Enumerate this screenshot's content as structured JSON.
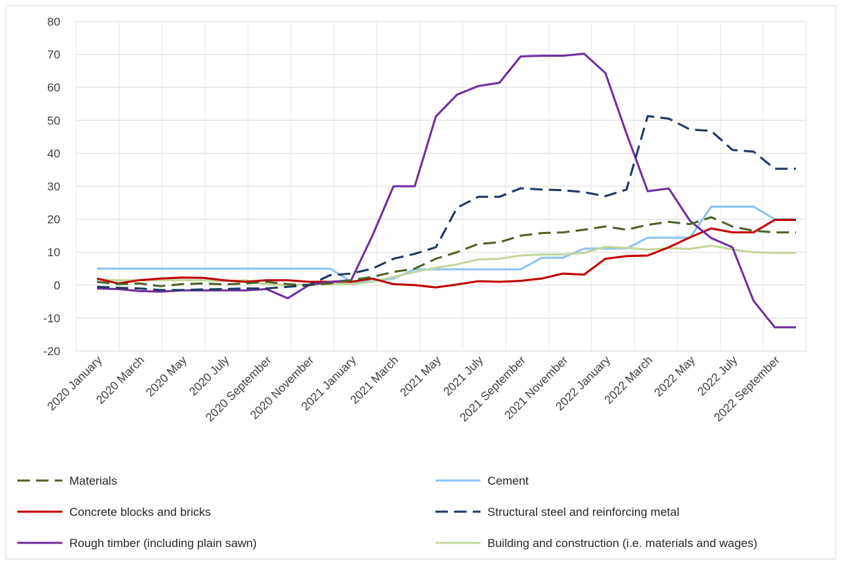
{
  "chart_data": {
    "type": "line",
    "title": "",
    "xlabel": "",
    "ylabel": "",
    "ylim": [
      -20,
      80
    ],
    "yticks": [
      -20,
      -10,
      0,
      10,
      20,
      30,
      40,
      50,
      60,
      70,
      80
    ],
    "grid": true,
    "legend_position": "bottom",
    "x": [
      "2020 January",
      "2020 February",
      "2020 March",
      "2020 April",
      "2020 May",
      "2020 June",
      "2020 July",
      "2020 August",
      "2020 September",
      "2020 October",
      "2020 November",
      "2020 December",
      "2021 January",
      "2021 February",
      "2021 March",
      "2021 April",
      "2021 May",
      "2021 June",
      "2021 July",
      "2021 August",
      "2021 September",
      "2021 October",
      "2021 November",
      "2021 December",
      "2022 January",
      "2022 February",
      "2022 March",
      "2022 April",
      "2022 May",
      "2022 June",
      "2022 July",
      "2022 August",
      "2022 September",
      "2022 October"
    ],
    "x_tick_labels": [
      "2020 January",
      "2020 March",
      "2020 May",
      "2020 July",
      "2020 September",
      "2020 November",
      "2021 January",
      "2021 March",
      "2021 May",
      "2021 July",
      "2021 September",
      "2021 November",
      "2022 January",
      "2022 March",
      "2022 May",
      "2022 July",
      "2022 September"
    ],
    "series": [
      {
        "name": "Materials",
        "color": "#4f6228",
        "dash": true,
        "values": [
          1.0,
          0.3,
          0.5,
          -0.3,
          0.3,
          0.5,
          0.2,
          0.5,
          1.0,
          0.3,
          0.0,
          0.5,
          1.5,
          2.5,
          4.0,
          5.0,
          8.0,
          10.0,
          12.5,
          13.0,
          15.0,
          15.8,
          16.0,
          16.8,
          17.8,
          16.8,
          18.3,
          19.2,
          18.5,
          20.6,
          17.8,
          16.5,
          16.0,
          16.0
        ]
      },
      {
        "name": "Cement",
        "color": "#8ec3ef",
        "dash": false,
        "values": [
          5.0,
          5.0,
          5.0,
          5.0,
          5.0,
          5.0,
          5.0,
          5.0,
          5.0,
          5.0,
          5.0,
          5.0,
          1.0,
          1.2,
          2.0,
          4.8,
          4.8,
          4.8,
          4.8,
          4.8,
          4.8,
          8.3,
          8.3,
          11.1,
          11.1,
          11.1,
          14.4,
          14.4,
          14.4,
          23.8,
          23.8,
          23.8,
          20.0,
          20.0
        ]
      },
      {
        "name": "Concrete blocks and bricks",
        "color": "#c00000",
        "dash": false,
        "values": [
          2.0,
          0.5,
          1.5,
          2.0,
          2.3,
          2.2,
          1.5,
          1.0,
          1.5,
          1.5,
          1.0,
          1.0,
          1.0,
          2.0,
          0.3,
          0.0,
          -0.7,
          0.2,
          1.2,
          1.0,
          1.3,
          2.0,
          3.5,
          3.2,
          8.0,
          8.8,
          9.0,
          11.5,
          14.5,
          17.2,
          16.0,
          16.0,
          19.8,
          19.8
        ]
      },
      {
        "name": "Structural steel and reinforcing metal",
        "color": "#1f3864",
        "dash": true,
        "values": [
          -0.5,
          -0.8,
          -1.0,
          -1.5,
          -1.5,
          -1.3,
          -1.2,
          -1.0,
          -1.0,
          -0.5,
          0.0,
          3.0,
          3.5,
          5.0,
          8.0,
          9.5,
          11.5,
          23.5,
          26.8,
          26.8,
          29.4,
          29.0,
          28.8,
          28.2,
          27.0,
          29.0,
          51.3,
          50.5,
          47.2,
          46.8,
          41.0,
          40.5,
          35.3,
          35.3
        ]
      },
      {
        "name": "Rough timber (including plain sawn)",
        "color": "#7030a0",
        "dash": false,
        "values": [
          -1.0,
          -1.2,
          -1.8,
          -2.0,
          -1.6,
          -1.6,
          -1.6,
          -1.6,
          -1.2,
          -4.0,
          0.0,
          1.0,
          1.5,
          15.0,
          30.0,
          30.0,
          51.2,
          57.8,
          60.4,
          61.4,
          69.4,
          69.6,
          69.6,
          70.2,
          64.4,
          46.0,
          28.5,
          29.3,
          19.5,
          14.3,
          11.5,
          -4.8,
          -12.8,
          -12.8
        ]
      },
      {
        "name": "Building and construction (i.e. materials and wages)",
        "color": "#c3d69b",
        "dash": false,
        "values": [
          1.8,
          1.5,
          1.5,
          1.5,
          1.5,
          1.5,
          1.2,
          1.5,
          0.2,
          0.0,
          0.2,
          0.2,
          0.3,
          1.0,
          2.5,
          4.0,
          5.3,
          6.3,
          7.8,
          8.0,
          9.0,
          9.3,
          9.3,
          9.8,
          11.6,
          11.3,
          10.8,
          11.2,
          11.0,
          12.0,
          10.8,
          10.0,
          9.8,
          9.8
        ]
      }
    ]
  }
}
